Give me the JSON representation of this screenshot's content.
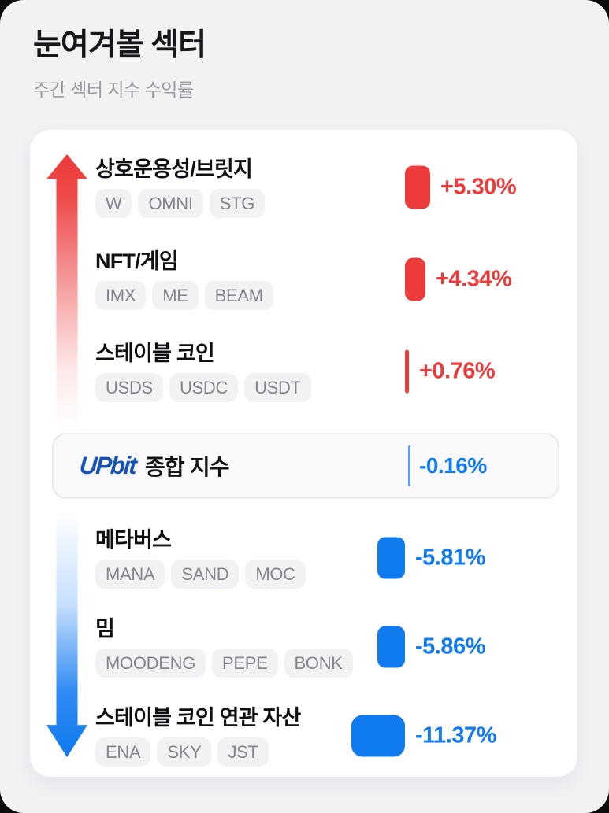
{
  "page": {
    "title": "눈여겨볼 섹터",
    "subtitle": "주간 섹터 지수 수익률"
  },
  "colors": {
    "up": "#ed3a3b",
    "down": "#0f7bef",
    "index_accent": "#107af0",
    "brand_blue": "#1753b4",
    "card_bg": "#ffffff",
    "page_bg": "#f1f2f4"
  },
  "index_row": {
    "brand": "UPbit",
    "label": "종합 지수",
    "change_label": "-0.16%",
    "change_pct": -0.16
  },
  "sectors": [
    {
      "name": "상호운용성/브릿지",
      "tags": [
        "W",
        "OMNI",
        "STG"
      ],
      "change_label": "+5.30%",
      "change_pct": 5.3,
      "direction": "up"
    },
    {
      "name": "NFT/게임",
      "tags": [
        "IMX",
        "ME",
        "BEAM"
      ],
      "change_label": "+4.34%",
      "change_pct": 4.34,
      "direction": "up"
    },
    {
      "name": "스테이블 코인",
      "tags": [
        "USDS",
        "USDC",
        "USDT"
      ],
      "change_label": "+0.76%",
      "change_pct": 0.76,
      "direction": "up"
    },
    {
      "name": "메타버스",
      "tags": [
        "MANA",
        "SAND",
        "MOC"
      ],
      "change_label": "-5.81%",
      "change_pct": -5.81,
      "direction": "down"
    },
    {
      "name": "밈",
      "tags": [
        "MOODENG",
        "PEPE",
        "BONK"
      ],
      "change_label": "-5.86%",
      "change_pct": -5.86,
      "direction": "down"
    },
    {
      "name": "스테이블 코인 연관 자산",
      "tags": [
        "ENA",
        "SKY",
        "JST"
      ],
      "change_label": "-11.37%",
      "change_pct": -11.37,
      "direction": "down"
    }
  ]
}
